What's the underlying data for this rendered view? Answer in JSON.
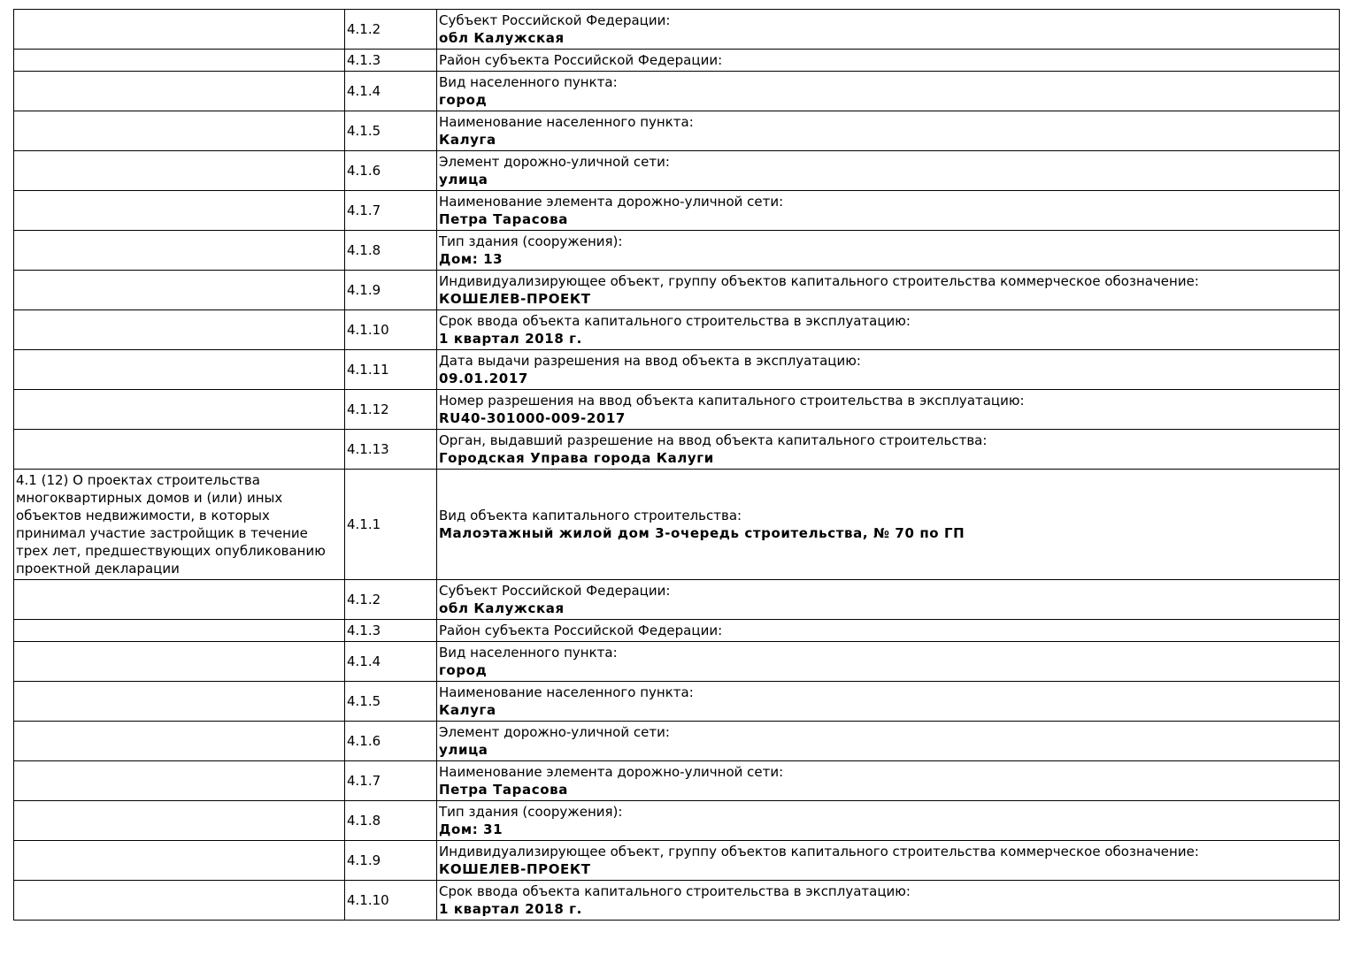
{
  "rows": [
    {
      "section": "",
      "num": "4.1.2",
      "label": "Субъект Российской Федерации:",
      "value": "обл Калужская"
    },
    {
      "section": "",
      "num": "4.1.3",
      "label": "Район субъекта Российской Федерации:",
      "value": ""
    },
    {
      "section": "",
      "num": "4.1.4",
      "label": "Вид населенного пункта:",
      "value": "город"
    },
    {
      "section": "",
      "num": "4.1.5",
      "label": "Наименование населенного пункта:",
      "value": "Калуга"
    },
    {
      "section": "",
      "num": "4.1.6",
      "label": "Элемент дорожно-уличной сети:",
      "value": "улица"
    },
    {
      "section": "",
      "num": "4.1.7",
      "label": "Наименование элемента дорожно-уличной сети:",
      "value": "Петра Тарасова"
    },
    {
      "section": "",
      "num": "4.1.8",
      "label": "Тип здания (сооружения):",
      "value": "Дом: 13"
    },
    {
      "section": "",
      "num": "4.1.9",
      "label": "Индивидуализирующее объект, группу объектов капитального строительства коммерческое обозначение:",
      "value": "КОШЕЛЕВ-ПРОЕКТ"
    },
    {
      "section": "",
      "num": "4.1.10",
      "label": "Срок ввода объекта капитального строительства в эксплуатацию:",
      "value": "1 квартал 2018 г."
    },
    {
      "section": "",
      "num": "4.1.11",
      "label": "Дата выдачи разрешения на ввод объекта в эксплуатацию:",
      "value": "09.01.2017"
    },
    {
      "section": "",
      "num": "4.1.12",
      "label": "Номер разрешения на ввод объекта капитального строительства в эксплуатацию:",
      "value": "RU40-301000-009-2017"
    },
    {
      "section": "",
      "num": "4.1.13",
      "label": "Орган, выдавший разрешение на ввод объекта капитального строительства:",
      "value": "Городская Управа города Калуги"
    },
    {
      "section": "4.1 (12) О проектах строительства многоквартирных домов и (или) иных объектов недвижимости, в которых принимал участие застройщик в течение трех лет, предшествующих опубликованию проектной декларации",
      "num": "4.1.1",
      "label": "Вид объекта капитального строительства:",
      "value": "Малоэтажный жилой дом 3-очередь строительства, № 70 по ГП"
    },
    {
      "section": "",
      "num": "4.1.2",
      "label": "Субъект Российской Федерации:",
      "value": "обл Калужская"
    },
    {
      "section": "",
      "num": "4.1.3",
      "label": "Район субъекта Российской Федерации:",
      "value": ""
    },
    {
      "section": "",
      "num": "4.1.4",
      "label": "Вид населенного пункта:",
      "value": "город"
    },
    {
      "section": "",
      "num": "4.1.5",
      "label": "Наименование населенного пункта:",
      "value": "Калуга"
    },
    {
      "section": "",
      "num": "4.1.6",
      "label": "Элемент дорожно-уличной сети:",
      "value": "улица"
    },
    {
      "section": "",
      "num": "4.1.7",
      "label": "Наименование элемента дорожно-уличной сети:",
      "value": "Петра Тарасова"
    },
    {
      "section": "",
      "num": "4.1.8",
      "label": "Тип здания (сооружения):",
      "value": "Дом: 31"
    },
    {
      "section": "",
      "num": "4.1.9",
      "label": "Индивидуализирующее объект, группу объектов капитального строительства коммерческое обозначение:",
      "value": "КОШЕЛЕВ-ПРОЕКТ"
    },
    {
      "section": "",
      "num": "4.1.10",
      "label": "Срок ввода объекта капитального строительства в эксплуатацию:",
      "value": "1 квартал 2018 г."
    }
  ]
}
